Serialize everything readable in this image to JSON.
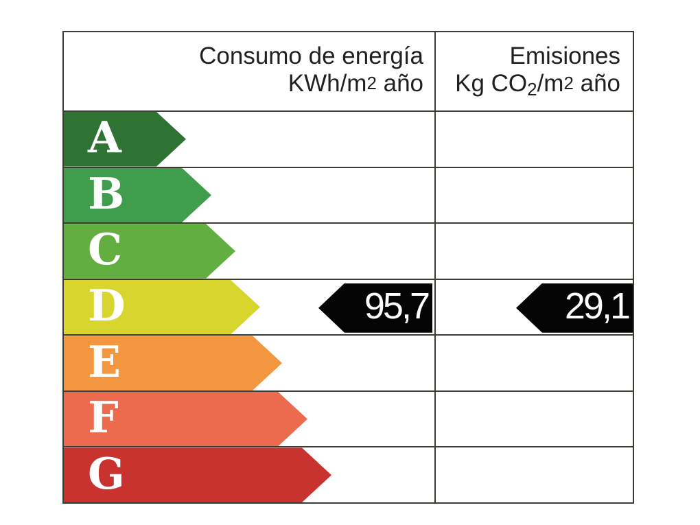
{
  "header": {
    "consumption": {
      "line1": "Consumo de energía",
      "line2": {
        "prefix": "KWh/m",
        "sup": "2",
        "suffix": " año"
      }
    },
    "emissions": {
      "line1": "Emisiones",
      "line2": {
        "prefix": "Kg CO",
        "sub": "2",
        "mid": "/m",
        "sup": "2",
        "suffix": " año"
      }
    }
  },
  "scale": {
    "rows": [
      {
        "letter": "A",
        "color": "#2e7234"
      },
      {
        "letter": "B",
        "color": "#3f9d4b"
      },
      {
        "letter": "C",
        "color": "#63ae41"
      },
      {
        "letter": "D",
        "color": "#d8d52f"
      },
      {
        "letter": "E",
        "color": "#f39640"
      },
      {
        "letter": "F",
        "color": "#ec6a4d"
      },
      {
        "letter": "G",
        "color": "#c8322f"
      }
    ]
  },
  "rating": {
    "letter": "D",
    "consumption_value": "95,7",
    "emissions_value": "29,1",
    "marker_color": "#050505",
    "marker_text_color": "#ffffff"
  },
  "colors": {
    "border": "#3b3b34",
    "background": "#ffffff",
    "header_text": "#221f1f"
  },
  "chart_data": {
    "type": "table",
    "title": "",
    "columns": [
      "Consumo de energía KWh/m2 año",
      "Emisiones Kg CO2/m2 año"
    ],
    "categories": [
      "A",
      "B",
      "C",
      "D",
      "E",
      "F",
      "G"
    ],
    "band_colors": [
      "#2e7234",
      "#3f9d4b",
      "#63ae41",
      "#d8d52f",
      "#f39640",
      "#ec6a4d",
      "#c8322f"
    ],
    "rating": "D",
    "values": {
      "consumo_kwh_m2_ano": 95.7,
      "emisiones_kg_co2_m2_ano": 29.1
    },
    "legend_position": "none",
    "grid": true
  }
}
